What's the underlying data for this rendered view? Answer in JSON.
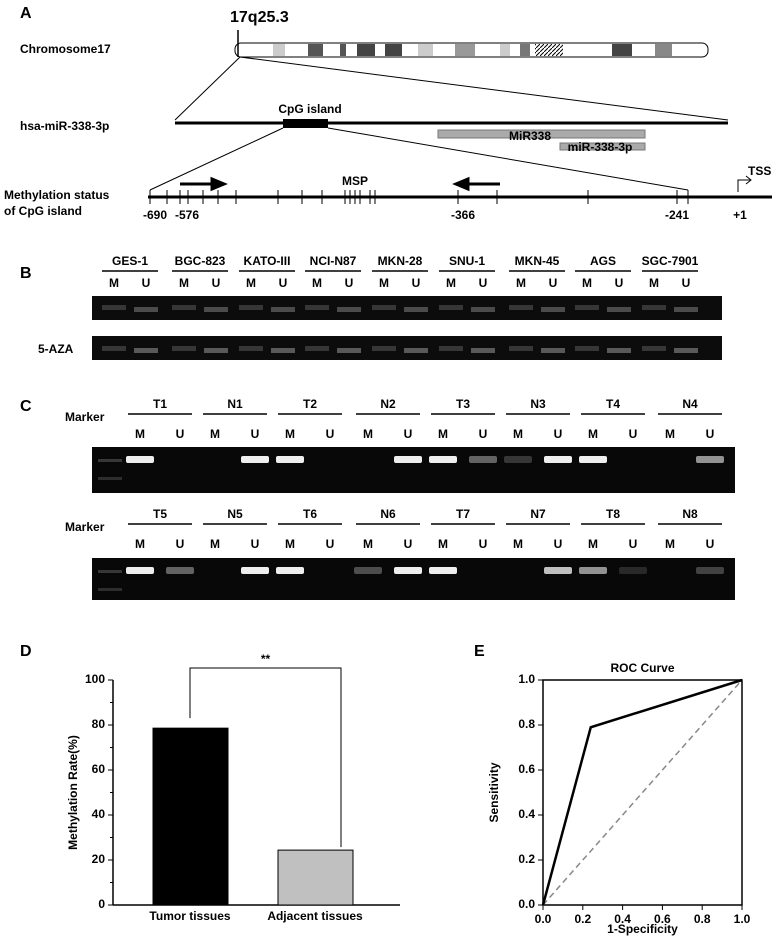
{
  "panel_labels": [
    "A",
    "B",
    "C",
    "D",
    "E"
  ],
  "panel_a": {
    "locus": "17q25.3",
    "chromosome": "Chromosome17",
    "gene": "hsa-miR-338-3p",
    "cpg_island": "CpG island",
    "mir338": "MiR338",
    "mir338_3p": "miR-338-3p",
    "methylation_label": [
      "Methylation status",
      "of CpG island"
    ],
    "msp": "MSP",
    "tss": "TSS",
    "positions": [
      "-690",
      "-576",
      "-366",
      "-241",
      "+1"
    ]
  },
  "panel_b": {
    "cell_lines": [
      "GES-1",
      "BGC-823",
      "KATO-III",
      "NCI-N87",
      "MKN-28",
      "SNU-1",
      "MKN-45",
      "AGS",
      "SGC-7901"
    ],
    "lane_labels": [
      "M",
      "U"
    ],
    "treatment": "5-AZA"
  },
  "panel_c": {
    "marker": "Marker",
    "rows": [
      [
        "T1",
        "N1",
        "T2",
        "N2",
        "T3",
        "N3",
        "T4",
        "N4"
      ],
      [
        "T5",
        "N5",
        "T6",
        "N6",
        "T7",
        "N7",
        "T8",
        "N8"
      ]
    ],
    "lane_labels": [
      "M",
      "U"
    ]
  },
  "chart_data": [
    {
      "type": "bar",
      "y_label": "Methylation Rate(%)",
      "categories": [
        "Tumor tissues",
        "Adjacent tissues"
      ],
      "values": [
        78.6,
        24.4
      ],
      "colors": [
        "#000000",
        "#c0c0c0"
      ],
      "ylim": [
        0,
        100
      ],
      "yticks": [
        0,
        20,
        40,
        60,
        80,
        100
      ],
      "annotation": "**"
    },
    {
      "type": "line",
      "title": "ROC Curve",
      "x_label": "1-Specificity",
      "y_label": "Sensitivity",
      "x": [
        0,
        0.24,
        1
      ],
      "values": [
        0,
        0.79,
        1
      ],
      "color": "#000000",
      "xlim": [
        0,
        1
      ],
      "ylim": [
        0,
        1
      ],
      "xticks": [
        {
          "value": 0,
          "label": "0.0"
        },
        0.2,
        0.4,
        0.6,
        0.8,
        {
          "value": 1,
          "label": "1.0"
        }
      ],
      "yticks": [
        {
          "value": 0,
          "label": "0.0"
        },
        0.2,
        0.4,
        0.6,
        0.8,
        {
          "value": 1,
          "label": "1.0"
        }
      ]
    }
  ]
}
